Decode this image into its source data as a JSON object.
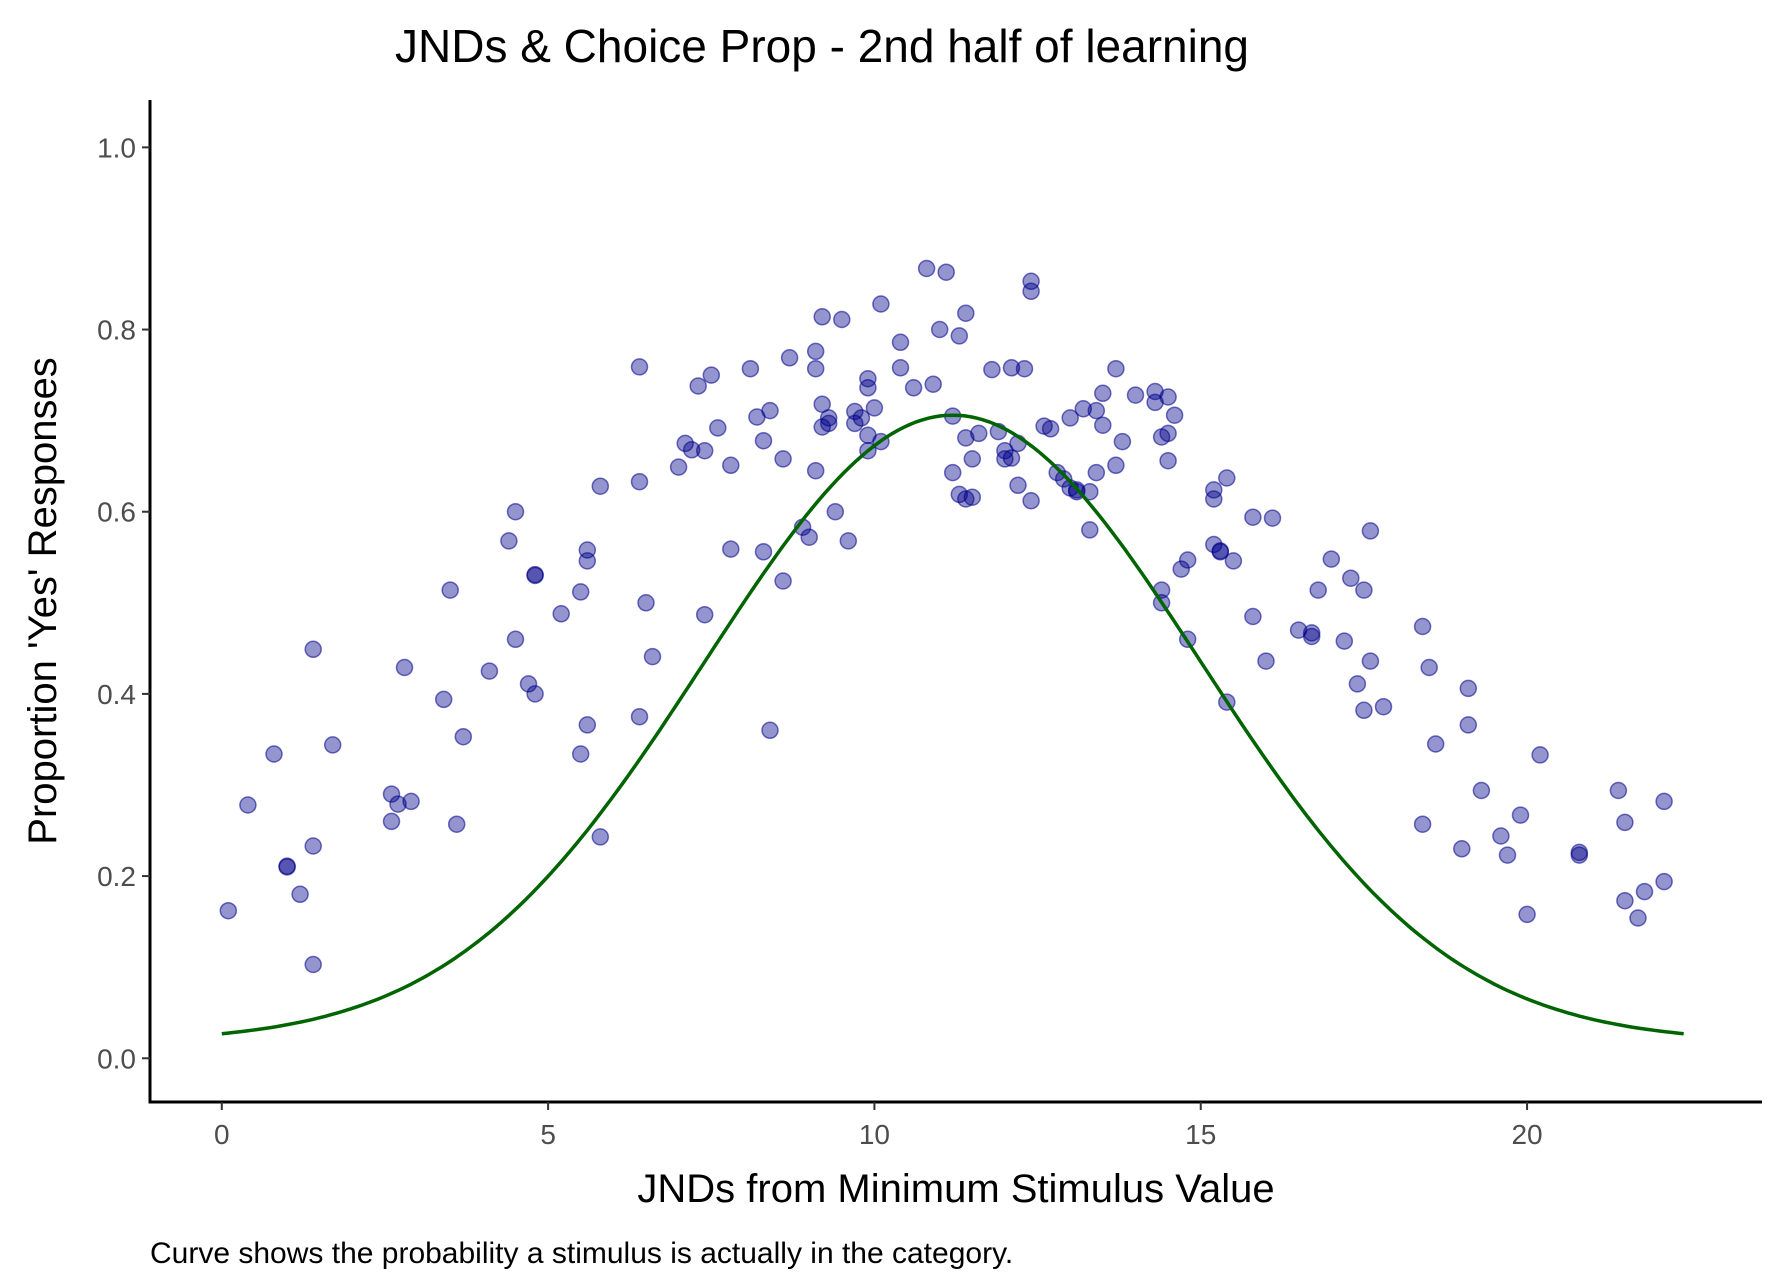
{
  "chart_data": {
    "type": "scatter",
    "title": "JNDs & Choice Prop - 2nd half of learning",
    "xlabel": "JNDs from Minimum Stimulus Value",
    "ylabel": "Proportion 'Yes' Responses",
    "caption": "Curve shows the probability a stimulus is actually in the category.",
    "xlim": [
      -1.1,
      23.6
    ],
    "ylim": [
      -0.048,
      1.052
    ],
    "x_ticks": [
      0,
      5,
      10,
      15,
      20
    ],
    "y_ticks": [
      0.0,
      0.2,
      0.4,
      0.6,
      0.8,
      1.0
    ],
    "x_tick_labels": [
      "0",
      "5",
      "10",
      "15",
      "20"
    ],
    "y_tick_labels": [
      "0.0",
      "0.2",
      "0.4",
      "0.6",
      "0.8",
      "1.0"
    ],
    "grid": false,
    "legend": "none",
    "colors": {
      "points": "#00008b",
      "curve": "#006400"
    },
    "points": [
      [
        0.1,
        0.162
      ],
      [
        0.4,
        0.278
      ],
      [
        0.8,
        0.334
      ],
      [
        1.0,
        0.211
      ],
      [
        1.0,
        0.21
      ],
      [
        1.2,
        0.18
      ],
      [
        1.4,
        0.449
      ],
      [
        1.4,
        0.103
      ],
      [
        1.4,
        0.233
      ],
      [
        1.7,
        0.344
      ],
      [
        2.6,
        0.26
      ],
      [
        2.6,
        0.29
      ],
      [
        2.7,
        0.279
      ],
      [
        2.8,
        0.429
      ],
      [
        2.9,
        0.282
      ],
      [
        3.4,
        0.394
      ],
      [
        3.5,
        0.514
      ],
      [
        3.6,
        0.257
      ],
      [
        3.7,
        0.353
      ],
      [
        4.1,
        0.425
      ],
      [
        4.4,
        0.568
      ],
      [
        4.5,
        0.6
      ],
      [
        4.5,
        0.46
      ],
      [
        4.7,
        0.411
      ],
      [
        4.8,
        0.53
      ],
      [
        4.8,
        0.531
      ],
      [
        4.8,
        0.4
      ],
      [
        5.2,
        0.488
      ],
      [
        5.5,
        0.512
      ],
      [
        5.5,
        0.334
      ],
      [
        5.6,
        0.546
      ],
      [
        5.6,
        0.558
      ],
      [
        5.6,
        0.366
      ],
      [
        5.8,
        0.628
      ],
      [
        5.8,
        0.243
      ],
      [
        6.4,
        0.633
      ],
      [
        6.4,
        0.375
      ],
      [
        6.4,
        0.759
      ],
      [
        6.5,
        0.5
      ],
      [
        6.6,
        0.441
      ],
      [
        7.0,
        0.649
      ],
      [
        7.1,
        0.675
      ],
      [
        7.2,
        0.668
      ],
      [
        7.3,
        0.738
      ],
      [
        7.4,
        0.667
      ],
      [
        7.4,
        0.487
      ],
      [
        7.5,
        0.75
      ],
      [
        7.6,
        0.692
      ],
      [
        7.8,
        0.559
      ],
      [
        7.8,
        0.651
      ],
      [
        8.1,
        0.757
      ],
      [
        8.2,
        0.704
      ],
      [
        8.3,
        0.556
      ],
      [
        8.3,
        0.678
      ],
      [
        8.4,
        0.711
      ],
      [
        8.4,
        0.36
      ],
      [
        8.6,
        0.524
      ],
      [
        8.6,
        0.658
      ],
      [
        8.7,
        0.769
      ],
      [
        8.9,
        0.583
      ],
      [
        9.0,
        0.572
      ],
      [
        9.1,
        0.645
      ],
      [
        9.1,
        0.757
      ],
      [
        9.1,
        0.776
      ],
      [
        9.2,
        0.693
      ],
      [
        9.2,
        0.718
      ],
      [
        9.2,
        0.814
      ],
      [
        9.3,
        0.697
      ],
      [
        9.3,
        0.703
      ],
      [
        9.4,
        0.6
      ],
      [
        9.5,
        0.811
      ],
      [
        9.6,
        0.568
      ],
      [
        9.7,
        0.71
      ],
      [
        9.7,
        0.697
      ],
      [
        9.8,
        0.703
      ],
      [
        9.9,
        0.746
      ],
      [
        9.9,
        0.736
      ],
      [
        9.9,
        0.684
      ],
      [
        9.9,
        0.667
      ],
      [
        10.0,
        0.714
      ],
      [
        10.1,
        0.677
      ],
      [
        10.1,
        0.828
      ],
      [
        10.4,
        0.758
      ],
      [
        10.4,
        0.786
      ],
      [
        10.6,
        0.736
      ],
      [
        10.8,
        0.867
      ],
      [
        10.9,
        0.74
      ],
      [
        11.0,
        0.8
      ],
      [
        11.1,
        0.863
      ],
      [
        11.2,
        0.643
      ],
      [
        11.2,
        0.705
      ],
      [
        11.3,
        0.793
      ],
      [
        11.3,
        0.619
      ],
      [
        11.4,
        0.614
      ],
      [
        11.4,
        0.681
      ],
      [
        11.4,
        0.818
      ],
      [
        11.5,
        0.616
      ],
      [
        11.5,
        0.658
      ],
      [
        11.6,
        0.686
      ],
      [
        11.8,
        0.756
      ],
      [
        11.9,
        0.688
      ],
      [
        12.0,
        0.658
      ],
      [
        12.0,
        0.667
      ],
      [
        12.1,
        0.659
      ],
      [
        12.1,
        0.758
      ],
      [
        12.2,
        0.629
      ],
      [
        12.2,
        0.675
      ],
      [
        12.3,
        0.757
      ],
      [
        12.4,
        0.853
      ],
      [
        12.4,
        0.842
      ],
      [
        12.4,
        0.612
      ],
      [
        12.6,
        0.694
      ],
      [
        12.7,
        0.691
      ],
      [
        12.8,
        0.643
      ],
      [
        12.9,
        0.636
      ],
      [
        13.0,
        0.626
      ],
      [
        13.0,
        0.703
      ],
      [
        13.1,
        0.624
      ],
      [
        13.1,
        0.622
      ],
      [
        13.2,
        0.713
      ],
      [
        13.3,
        0.622
      ],
      [
        13.3,
        0.58
      ],
      [
        13.4,
        0.643
      ],
      [
        13.4,
        0.711
      ],
      [
        13.5,
        0.73
      ],
      [
        13.5,
        0.695
      ],
      [
        13.7,
        0.757
      ],
      [
        13.7,
        0.651
      ],
      [
        13.8,
        0.677
      ],
      [
        14.0,
        0.728
      ],
      [
        14.3,
        0.72
      ],
      [
        14.3,
        0.732
      ],
      [
        14.4,
        0.682
      ],
      [
        14.4,
        0.514
      ],
      [
        14.4,
        0.5
      ],
      [
        14.5,
        0.656
      ],
      [
        14.5,
        0.726
      ],
      [
        14.5,
        0.686
      ],
      [
        14.6,
        0.706
      ],
      [
        14.7,
        0.537
      ],
      [
        14.8,
        0.547
      ],
      [
        14.8,
        0.46
      ],
      [
        15.2,
        0.624
      ],
      [
        15.2,
        0.614
      ],
      [
        15.2,
        0.564
      ],
      [
        15.3,
        0.556
      ],
      [
        15.3,
        0.557
      ],
      [
        15.4,
        0.637
      ],
      [
        15.4,
        0.391
      ],
      [
        15.5,
        0.546
      ],
      [
        15.8,
        0.594
      ],
      [
        15.8,
        0.485
      ],
      [
        16.0,
        0.436
      ],
      [
        16.1,
        0.593
      ],
      [
        16.5,
        0.47
      ],
      [
        16.7,
        0.463
      ],
      [
        16.7,
        0.467
      ],
      [
        16.8,
        0.514
      ],
      [
        17.0,
        0.548
      ],
      [
        17.2,
        0.458
      ],
      [
        17.3,
        0.527
      ],
      [
        17.4,
        0.411
      ],
      [
        17.5,
        0.382
      ],
      [
        17.5,
        0.514
      ],
      [
        17.6,
        0.579
      ],
      [
        17.6,
        0.436
      ],
      [
        17.8,
        0.386
      ],
      [
        18.4,
        0.474
      ],
      [
        18.4,
        0.257
      ],
      [
        18.5,
        0.429
      ],
      [
        18.6,
        0.345
      ],
      [
        19.0,
        0.23
      ],
      [
        19.1,
        0.406
      ],
      [
        19.1,
        0.366
      ],
      [
        19.3,
        0.294
      ],
      [
        19.6,
        0.244
      ],
      [
        19.7,
        0.223
      ],
      [
        19.9,
        0.267
      ],
      [
        20.0,
        0.158
      ],
      [
        20.2,
        0.333
      ],
      [
        20.8,
        0.226
      ],
      [
        20.8,
        0.223
      ],
      [
        21.4,
        0.294
      ],
      [
        21.5,
        0.173
      ],
      [
        21.5,
        0.259
      ],
      [
        21.7,
        0.154
      ],
      [
        21.8,
        0.183
      ],
      [
        22.1,
        0.194
      ],
      [
        22.1,
        0.282
      ]
    ],
    "curve": {
      "type": "line",
      "x_range": [
        0,
        22.4
      ],
      "peak_x": 11.2,
      "peak_y": 0.706,
      "sd": 3.8,
      "endpoint_y": 0.027
    }
  }
}
